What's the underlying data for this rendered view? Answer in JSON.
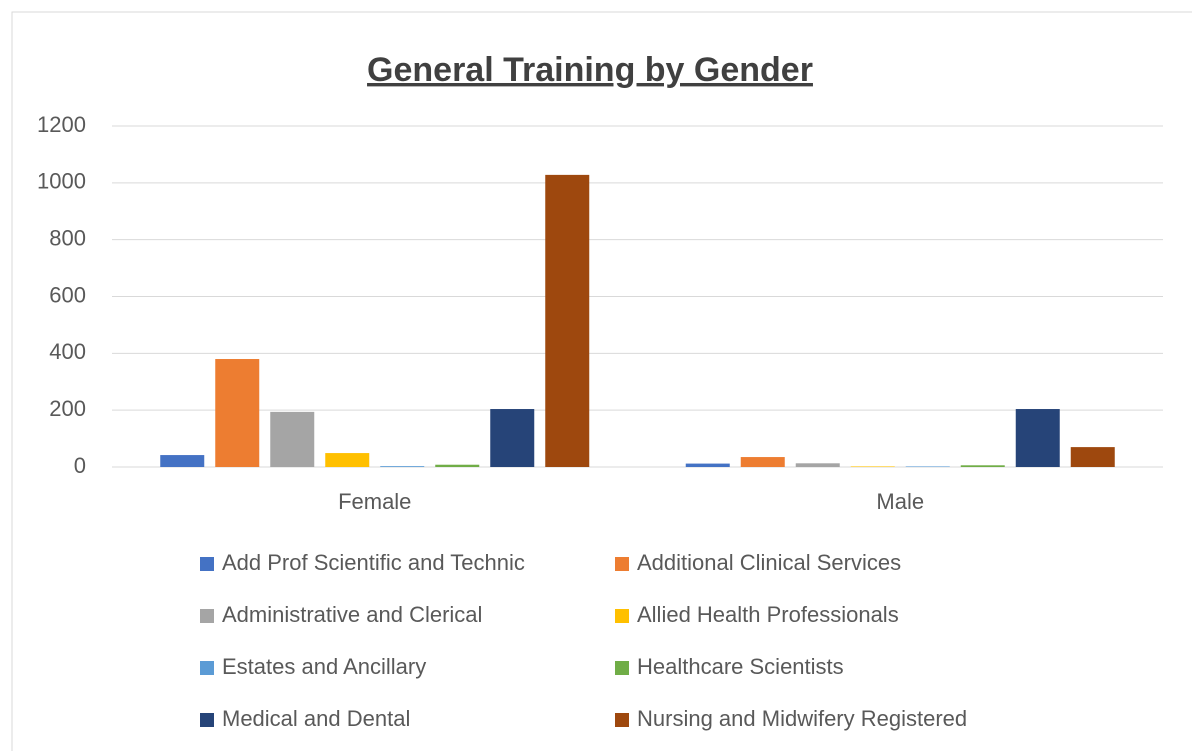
{
  "chart_data": {
    "type": "bar",
    "title": "General Training by Gender",
    "categories": [
      "Female",
      "Male"
    ],
    "series": [
      {
        "name": "Add Prof Scientific and Technic",
        "color": "#4472c4",
        "values": [
          42,
          12
        ]
      },
      {
        "name": "Additional Clinical Services",
        "color": "#ed7d31",
        "values": [
          380,
          35
        ]
      },
      {
        "name": "Administrative and Clerical",
        "color": "#a5a5a5",
        "values": [
          194,
          13
        ]
      },
      {
        "name": "Allied Health Professionals",
        "color": "#ffc000",
        "values": [
          49,
          2
        ]
      },
      {
        "name": "Estates and Ancillary",
        "color": "#5b9bd5",
        "values": [
          3,
          2
        ]
      },
      {
        "name": "Healthcare Scientists",
        "color": "#70ad47",
        "values": [
          8,
          6
        ]
      },
      {
        "name": "Medical and Dental",
        "color": "#264478",
        "values": [
          204,
          204
        ]
      },
      {
        "name": "Nursing and Midwifery Registered",
        "color": "#9e480e",
        "values": [
          1028,
          70
        ]
      }
    ],
    "ylim": [
      0,
      1200
    ],
    "yticks": [
      0,
      200,
      400,
      600,
      800,
      1000,
      1200
    ],
    "grid": true,
    "legend": "bottom"
  }
}
